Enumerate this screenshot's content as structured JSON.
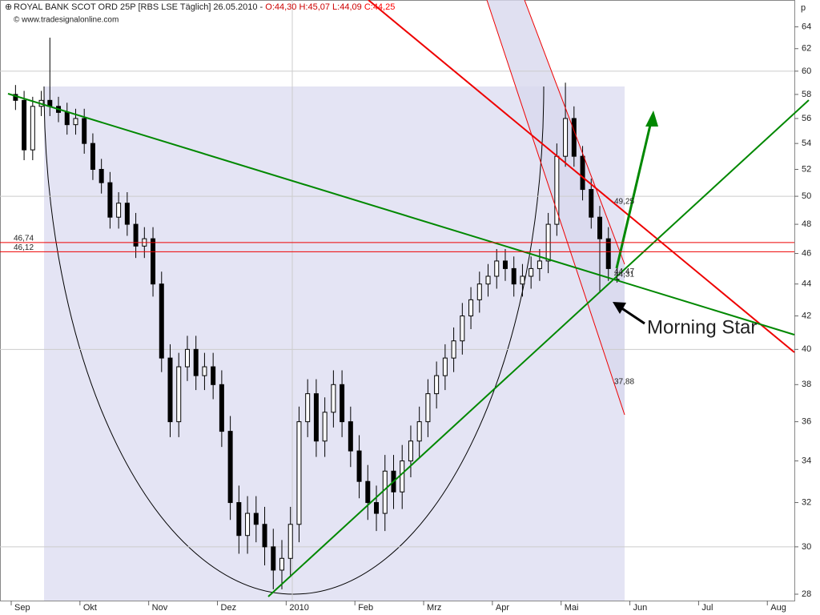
{
  "chart_data": {
    "type": "candlestick",
    "title": "ROYAL BANK SCOT ORD 25P [RBS LSE  Täglich] 26.05.2010 - ",
    "quote": "O:44,30 H:45,07 L:44,09 ",
    "close_quote": "C:44,25",
    "subtitle": "© www.tradesignalonline.com",
    "y_unit": "p",
    "log_y": true,
    "ylim": [
      27.74,
      66.4
    ],
    "yticks": [
      28,
      30,
      32,
      34,
      36,
      38,
      40,
      42,
      44,
      46,
      48,
      50,
      52,
      54,
      56,
      58,
      60,
      62,
      64
    ],
    "ygrid": [
      30,
      40,
      50,
      60
    ],
    "categories": [
      "Sep",
      null,
      null,
      null,
      null,
      null,
      null,
      null,
      "Okt",
      null,
      null,
      null,
      null,
      null,
      null,
      null,
      "Nov",
      null,
      null,
      null,
      null,
      null,
      null,
      null,
      "Dez",
      null,
      null,
      null,
      null,
      null,
      null,
      null,
      "2010",
      null,
      null,
      null,
      null,
      null,
      null,
      null,
      "Feb",
      null,
      null,
      null,
      null,
      null,
      null,
      null,
      "Mrz",
      null,
      null,
      null,
      null,
      null,
      null,
      null,
      "Apr",
      null,
      null,
      null,
      null,
      null,
      null,
      null,
      "Mai",
      null,
      null,
      null,
      null,
      null,
      null,
      null,
      "Jun",
      null,
      null,
      null,
      null,
      null,
      null,
      null,
      "Jul",
      null,
      null,
      null,
      null,
      null,
      null,
      null,
      "Aug",
      null,
      null
    ],
    "open": [
      58,
      57.5,
      53.5,
      57,
      57.5,
      57,
      56.5,
      55.5,
      56,
      54,
      52,
      51,
      48.5,
      49.5,
      48,
      46.5,
      47,
      44,
      39.5,
      36,
      39,
      40,
      38.5,
      39,
      38,
      35.5,
      32,
      30.5,
      31.5,
      31,
      30,
      29,
      29.5,
      31,
      36,
      37.5,
      35,
      36.5,
      38,
      36,
      34.5,
      33,
      32,
      31.5,
      33.5,
      32.5,
      34,
      35,
      36,
      37.5,
      38.5,
      39.5,
      40.5,
      42,
      43,
      44,
      44.5,
      45.5,
      45,
      44,
      44.5,
      45,
      45.5,
      48,
      53,
      56,
      53,
      50.5,
      48.5,
      47,
      44.3,
      null,
      null,
      null,
      null,
      null,
      null,
      null,
      null,
      null,
      null,
      null,
      null,
      null,
      null,
      null,
      null,
      null,
      null,
      null,
      null
    ],
    "high": [
      58.8,
      58.3,
      57.8,
      58.3,
      63,
      57.8,
      57.3,
      56.8,
      56.8,
      54.8,
      52.8,
      51.8,
      50.3,
      50.3,
      48.8,
      47.8,
      47.8,
      44.8,
      40.3,
      39.8,
      40.8,
      40.8,
      39.8,
      39.8,
      38.8,
      36.3,
      32.8,
      32.3,
      32.3,
      31.8,
      30.8,
      30.3,
      31.8,
      36.8,
      38.3,
      38.3,
      37.3,
      38.8,
      38.8,
      36.8,
      35.3,
      33.8,
      32.8,
      34.3,
      34.3,
      34.8,
      35.8,
      36.8,
      38.3,
      39.3,
      40.3,
      41.3,
      42.8,
      43.8,
      44.8,
      45.3,
      46.3,
      46.3,
      45.8,
      45.3,
      45.8,
      46.3,
      48.8,
      54,
      59,
      57,
      53.8,
      51.3,
      49.3,
      47.8,
      45.07,
      null,
      null,
      null,
      null,
      null,
      null,
      null,
      null,
      null,
      null,
      null,
      null,
      null,
      null,
      null,
      null,
      null,
      null,
      null,
      null
    ],
    "low": [
      56.7,
      52.7,
      52.7,
      56.2,
      56.2,
      55.7,
      54.7,
      54.7,
      53.2,
      51.2,
      50.2,
      47.7,
      47.7,
      47.2,
      45.7,
      45.7,
      43.2,
      38.7,
      35.2,
      35.2,
      38.2,
      37.7,
      37.7,
      37.2,
      34.7,
      31.2,
      29.7,
      29.7,
      30.2,
      29.2,
      28.2,
      28.2,
      28.7,
      30.2,
      35.2,
      34.2,
      34.2,
      35.7,
      35.2,
      33.7,
      32.2,
      31.2,
      30.7,
      30.7,
      31.7,
      31.7,
      33.2,
      34.2,
      35.2,
      36.7,
      37.7,
      38.7,
      39.7,
      41.2,
      42.2,
      43.2,
      43.7,
      44.2,
      43.2,
      43.2,
      43.7,
      44.2,
      44.7,
      47.2,
      52.2,
      52.2,
      49.7,
      47.7,
      43.5,
      44.2,
      44.09,
      null,
      null,
      null,
      null,
      null,
      null,
      null,
      null,
      null,
      null,
      null,
      null,
      null,
      null,
      null,
      null,
      null,
      null,
      null,
      null
    ],
    "close": [
      57.5,
      53.5,
      57,
      57.5,
      57,
      56.5,
      55.5,
      56,
      54,
      52,
      51,
      48.5,
      49.5,
      48,
      46.5,
      47,
      44,
      39.5,
      36,
      39,
      40,
      38.5,
      39,
      38,
      35.5,
      32,
      30.5,
      31.5,
      31,
      30,
      29,
      29.5,
      31,
      36,
      37.5,
      35,
      36.5,
      38,
      36,
      34.5,
      33,
      32,
      31.5,
      33.5,
      32.5,
      34,
      35,
      36,
      37.5,
      38.5,
      39.5,
      40.5,
      42,
      43,
      44,
      44.5,
      45.5,
      45,
      44,
      44.5,
      45,
      45.5,
      48,
      53,
      56,
      53,
      50.5,
      48.5,
      47,
      45,
      44.25,
      null,
      null,
      null,
      null,
      null,
      null,
      null,
      null,
      null,
      null,
      null,
      null,
      null,
      null,
      null,
      null,
      null,
      null,
      null,
      null
    ],
    "hlines": [
      {
        "value": 46.74,
        "label": "46,74"
      },
      {
        "value": 46.12,
        "label": "46,12"
      }
    ],
    "price_labels": [
      {
        "value": 49.25,
        "label": "49,25"
      },
      {
        "value": 44.47,
        "label": "44,47"
      },
      {
        "value": 44.31,
        "label": "44,31"
      },
      {
        "value": 37.88,
        "label": "37,88"
      }
    ],
    "annotation": "Morning Star"
  }
}
